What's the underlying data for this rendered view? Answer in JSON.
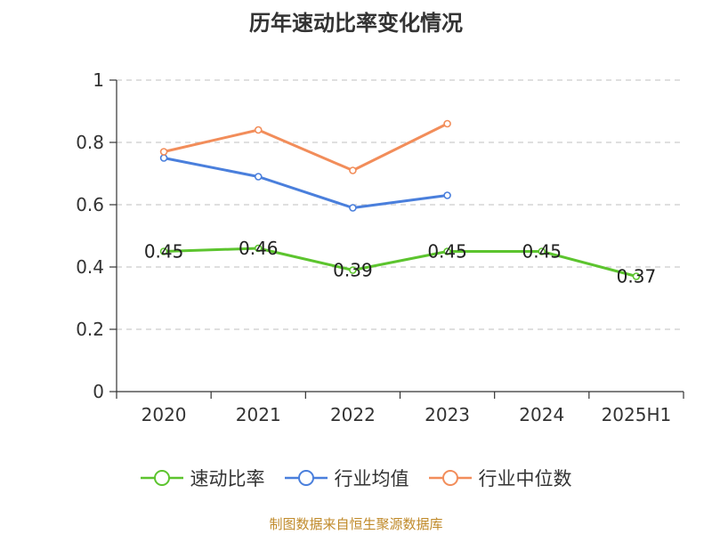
{
  "title": "历年速动比率变化情况",
  "source_note": "制图数据来自恒生聚源数据库",
  "chart_data": {
    "type": "line",
    "title": "历年速动比率变化情况",
    "categories": [
      "2020",
      "2021",
      "2022",
      "2023",
      "2024",
      "2025H1"
    ],
    "ylim": [
      0,
      1
    ],
    "yticks": [
      0,
      0.2,
      0.4,
      0.6,
      0.8,
      1
    ],
    "ytick_labels": [
      "0",
      "0.2",
      "0.4",
      "0.6",
      "0.8",
      "1"
    ],
    "grid": true,
    "legend_position": "bottom",
    "series": [
      {
        "name": "速动比率",
        "color": "#5cc42e",
        "values": [
          0.45,
          0.46,
          0.39,
          0.45,
          0.45,
          0.37
        ],
        "labels": [
          "0.45",
          "0.46",
          "0.39",
          "0.45",
          "0.45",
          "0.37"
        ],
        "show_labels": true
      },
      {
        "name": "行业均值",
        "color": "#4a7fdc",
        "values": [
          0.75,
          0.69,
          0.59,
          0.63,
          null,
          null
        ],
        "show_labels": false
      },
      {
        "name": "行业中位数",
        "color": "#f28d5a",
        "values": [
          0.77,
          0.84,
          0.71,
          0.86,
          null,
          null
        ],
        "show_labels": false
      }
    ]
  }
}
